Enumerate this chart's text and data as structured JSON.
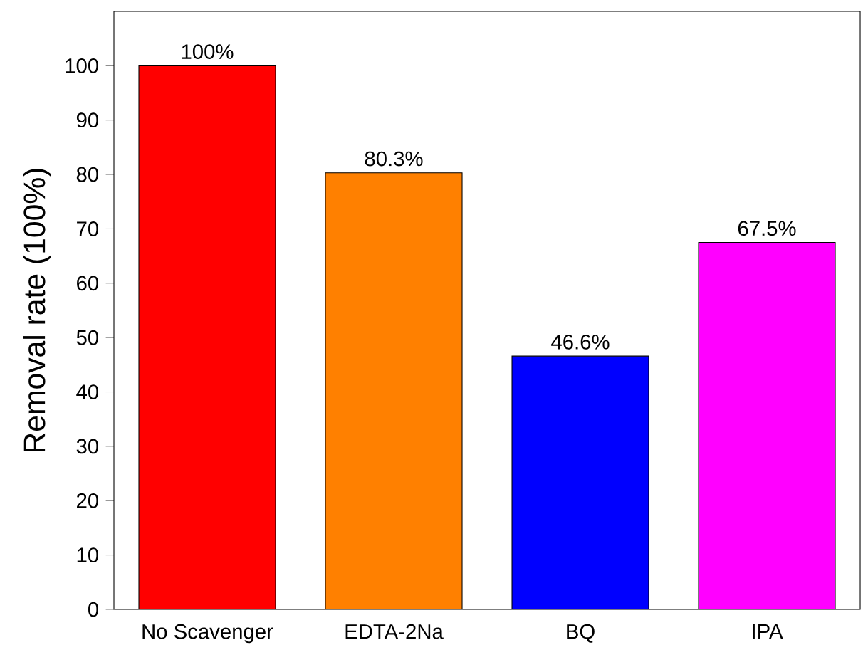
{
  "chart_data": {
    "type": "bar",
    "ylabel": "Removal rate (100%)",
    "categories": [
      "No Scavenger",
      "EDTA-2Na",
      "BQ",
      "IPA"
    ],
    "values": [
      100,
      80.3,
      46.6,
      67.5
    ],
    "value_labels": [
      "100%",
      "80.3%",
      "46.6%",
      "67.5%"
    ],
    "colors": [
      "#ff0000",
      "#ff8000",
      "#0000ff",
      "#ff00ff"
    ],
    "ylim": [
      0,
      110
    ],
    "yticks": [
      0,
      10,
      20,
      30,
      40,
      50,
      60,
      70,
      80,
      90,
      100
    ]
  }
}
